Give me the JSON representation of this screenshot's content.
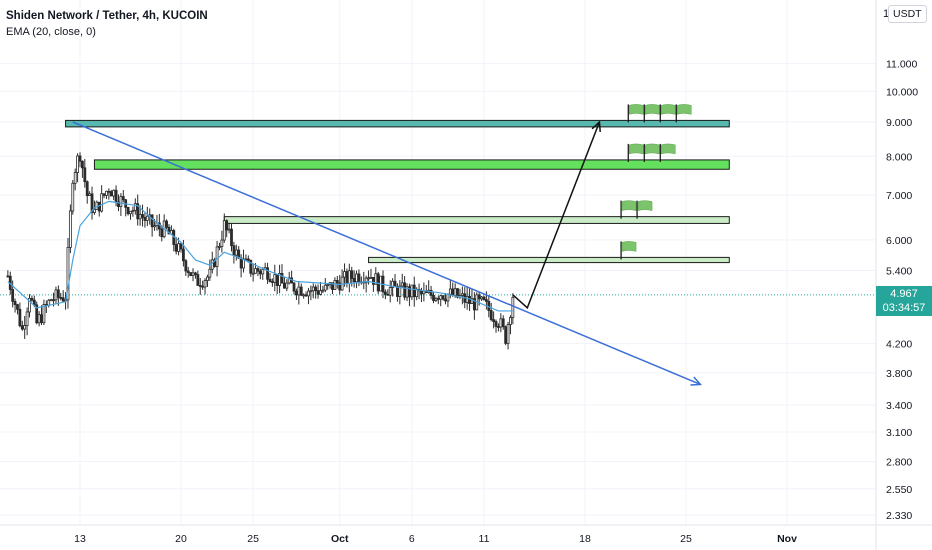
{
  "legend": {
    "title": "Shiden Network / Tether, 4h, KUCOIN",
    "indicator": "EMA (20, close, 0)"
  },
  "price_axis": {
    "unit": "USDT",
    "top_letter": "1",
    "current_price": "4.967",
    "countdown": "03:34:57"
  },
  "colors": {
    "up": "#26a69a",
    "down": "#ef5350",
    "candle": "#2b2b2b",
    "ema": "#4aa3df",
    "trendline": "#3b6fd8",
    "zone_dark": "#56b8ae",
    "zone_bright": "#63e05d",
    "zone_light": "#c9ecc6",
    "flag": "#7bc46b"
  },
  "chart_data": {
    "type": "candlestick",
    "symbol": "Shiden Network / Tether",
    "interval": "4h",
    "exchange": "KUCOIN",
    "y_scale": "log",
    "y_ticks": [
      "11.000",
      "10.000",
      "9.000",
      "8.000",
      "7.000",
      "6.000",
      "5.400",
      "4.200",
      "3.800",
      "3.400",
      "3.100",
      "2.800",
      "2.550",
      "2.330"
    ],
    "x_ticks": [
      {
        "label": "13",
        "date": "2021-09-13"
      },
      {
        "label": "20",
        "date": "2021-09-20"
      },
      {
        "label": "25",
        "date": "2021-09-25"
      },
      {
        "label": "Oct",
        "date": "2021-10-01"
      },
      {
        "label": "6",
        "date": "2021-10-06"
      },
      {
        "label": "11",
        "date": "2021-10-11"
      },
      {
        "label": "18",
        "date": "2021-10-18"
      },
      {
        "label": "25",
        "date": "2021-10-25"
      },
      {
        "label": "Nov",
        "date": "2021-11-01"
      }
    ],
    "last_price": 4.967,
    "price_path": [
      [
        "2021-09-08",
        5.3
      ],
      [
        "2021-09-09",
        4.4
      ],
      [
        "2021-09-09T12:00",
        5.0
      ],
      [
        "2021-09-10",
        4.5
      ],
      [
        "2021-09-11",
        4.9
      ],
      [
        "2021-09-12",
        4.95
      ],
      [
        "2021-09-12T12:00",
        7.5
      ],
      [
        "2021-09-13",
        8.1
      ],
      [
        "2021-09-13T12:00",
        7.0
      ],
      [
        "2021-09-14",
        6.6
      ],
      [
        "2021-09-15",
        7.2
      ],
      [
        "2021-09-16",
        6.8
      ],
      [
        "2021-09-17",
        6.6
      ],
      [
        "2021-09-18",
        6.3
      ],
      [
        "2021-09-19",
        6.2
      ],
      [
        "2021-09-20",
        5.7
      ],
      [
        "2021-09-21",
        5.2
      ],
      [
        "2021-09-22",
        5.3
      ],
      [
        "2021-09-23",
        6.3
      ],
      [
        "2021-09-24",
        5.6
      ],
      [
        "2021-09-25",
        5.4
      ],
      [
        "2021-09-26",
        5.4
      ],
      [
        "2021-09-27",
        5.15
      ],
      [
        "2021-09-28",
        5.1
      ],
      [
        "2021-09-29",
        5.05
      ],
      [
        "2021-09-30",
        5.05
      ],
      [
        "2021-10-01",
        5.2
      ],
      [
        "2021-10-02",
        5.3
      ],
      [
        "2021-10-03",
        5.35
      ],
      [
        "2021-10-04",
        5.1
      ],
      [
        "2021-10-05",
        5.05
      ],
      [
        "2021-10-06",
        5.0
      ],
      [
        "2021-10-07",
        4.95
      ],
      [
        "2021-10-08",
        5.0
      ],
      [
        "2021-10-09",
        4.95
      ],
      [
        "2021-10-10",
        4.85
      ],
      [
        "2021-10-11",
        4.8
      ],
      [
        "2021-10-12",
        4.55
      ],
      [
        "2021-10-12T12:00",
        4.3
      ],
      [
        "2021-10-13",
        4.967
      ]
    ],
    "ema": {
      "name": "EMA (20, close, 0)",
      "points": [
        [
          "2021-09-08",
          5.2
        ],
        [
          "2021-09-10",
          4.75
        ],
        [
          "2021-09-12",
          4.85
        ],
        [
          "2021-09-12T12:00",
          5.6
        ],
        [
          "2021-09-13",
          6.3
        ],
        [
          "2021-09-14",
          6.7
        ],
        [
          "2021-09-15",
          6.85
        ],
        [
          "2021-09-17",
          6.75
        ],
        [
          "2021-09-18",
          6.45
        ],
        [
          "2021-09-20",
          5.95
        ],
        [
          "2021-09-21",
          5.6
        ],
        [
          "2021-09-22",
          5.5
        ],
        [
          "2021-09-23",
          5.75
        ],
        [
          "2021-09-24",
          5.65
        ],
        [
          "2021-09-26",
          5.4
        ],
        [
          "2021-09-28",
          5.2
        ],
        [
          "2021-10-01",
          5.15
        ],
        [
          "2021-10-03",
          5.2
        ],
        [
          "2021-10-05",
          5.1
        ],
        [
          "2021-10-08",
          5.0
        ],
        [
          "2021-10-10",
          4.9
        ],
        [
          "2021-10-12",
          4.7
        ],
        [
          "2021-10-13",
          4.7
        ]
      ]
    },
    "drawings": {
      "zones": [
        {
          "from": "2021-09-12",
          "to": "2021-10-28",
          "low": 8.85,
          "high": 9.05,
          "style": "dark"
        },
        {
          "from": "2021-09-14",
          "to": "2021-10-28",
          "low": 7.65,
          "high": 7.9,
          "style": "bright"
        },
        {
          "from": "2021-09-23",
          "to": "2021-10-28",
          "low": 6.35,
          "high": 6.5,
          "style": "light"
        },
        {
          "from": "2021-10-03",
          "to": "2021-10-28",
          "low": 5.55,
          "high": 5.65,
          "style": "light"
        }
      ],
      "trendline": {
        "from": [
          "2021-09-12T12:00",
          9.0
        ],
        "to": [
          "2021-10-26",
          3.65
        ]
      },
      "projection": [
        [
          "2021-10-13",
          4.967
        ],
        [
          "2021-10-14",
          4.75
        ],
        [
          "2021-10-19",
          9.0
        ]
      ],
      "flags": [
        {
          "price": 9.05,
          "count": 4,
          "start": "2021-10-21"
        },
        {
          "price": 7.9,
          "count": 3,
          "start": "2021-10-21"
        },
        {
          "price": 6.5,
          "count": 2,
          "start": "2021-10-20T12:00"
        },
        {
          "price": 5.65,
          "count": 1,
          "start": "2021-10-20T12:00"
        }
      ]
    }
  }
}
